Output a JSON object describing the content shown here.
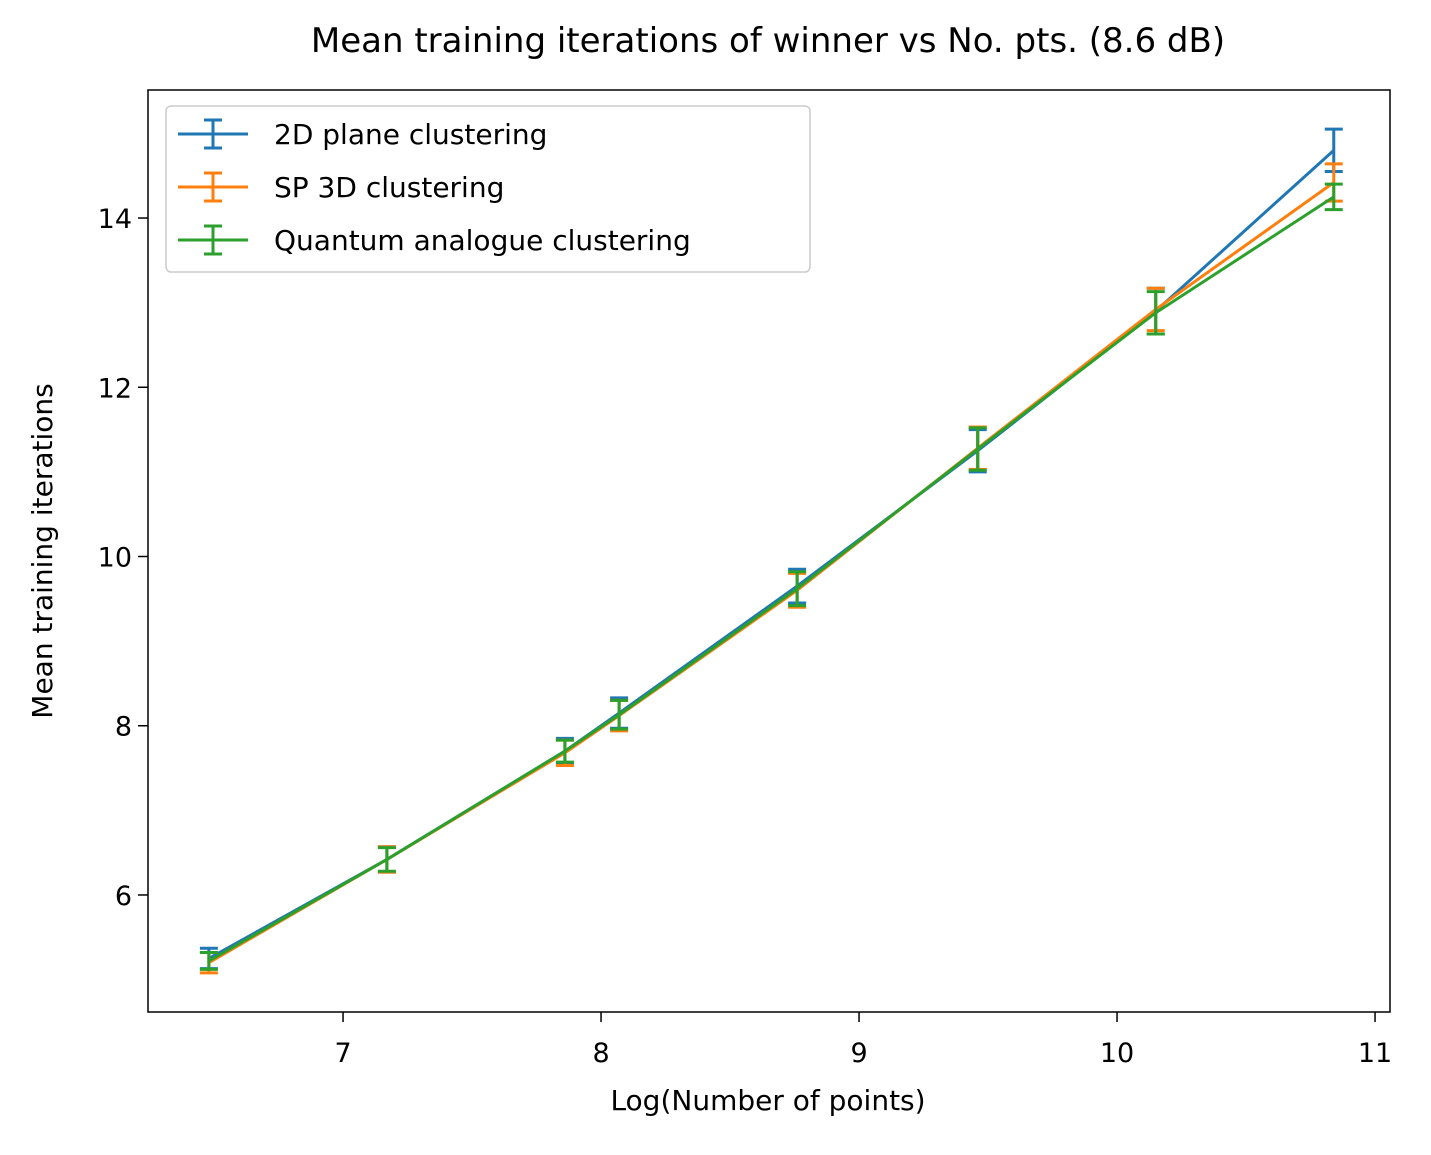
{
  "chart_data": {
    "type": "errorbar-line",
    "title": "Mean training iterations of winner vs No. pts. (8.6 dB)",
    "x_label": "Log(Number of points)",
    "y_label": "Mean training iterations",
    "x": [
      6.48,
      7.17,
      7.86,
      8.07,
      8.76,
      9.46,
      10.15,
      10.84
    ],
    "series": [
      {
        "name": "2D plane clustering",
        "color": "#1f77b4",
        "values": [
          5.25,
          6.42,
          7.7,
          8.15,
          9.65,
          11.25,
          12.9,
          14.8
        ],
        "errors": [
          0.12,
          0.15,
          0.15,
          0.18,
          0.2,
          0.25,
          0.27,
          0.25
        ]
      },
      {
        "name": "SP 3D clustering",
        "color": "#ff7f0e",
        "values": [
          5.2,
          6.42,
          7.68,
          8.12,
          9.6,
          11.28,
          12.92,
          14.42
        ],
        "errors": [
          0.12,
          0.15,
          0.15,
          0.18,
          0.2,
          0.25,
          0.25,
          0.22
        ]
      },
      {
        "name": "Quantum analogue clustering",
        "color": "#2ca02c",
        "values": [
          5.22,
          6.42,
          7.7,
          8.13,
          9.62,
          11.27,
          12.88,
          14.25
        ],
        "errors": [
          0.1,
          0.14,
          0.13,
          0.17,
          0.2,
          0.25,
          0.25,
          0.15
        ]
      }
    ],
    "xlim": [
      6.244,
      11.058
    ],
    "ylim": [
      4.617,
      15.513
    ],
    "xticks": [
      7,
      8,
      9,
      10,
      11
    ],
    "yticks": [
      6,
      8,
      10,
      12,
      14
    ],
    "legend": "upper left",
    "grid": false
  }
}
